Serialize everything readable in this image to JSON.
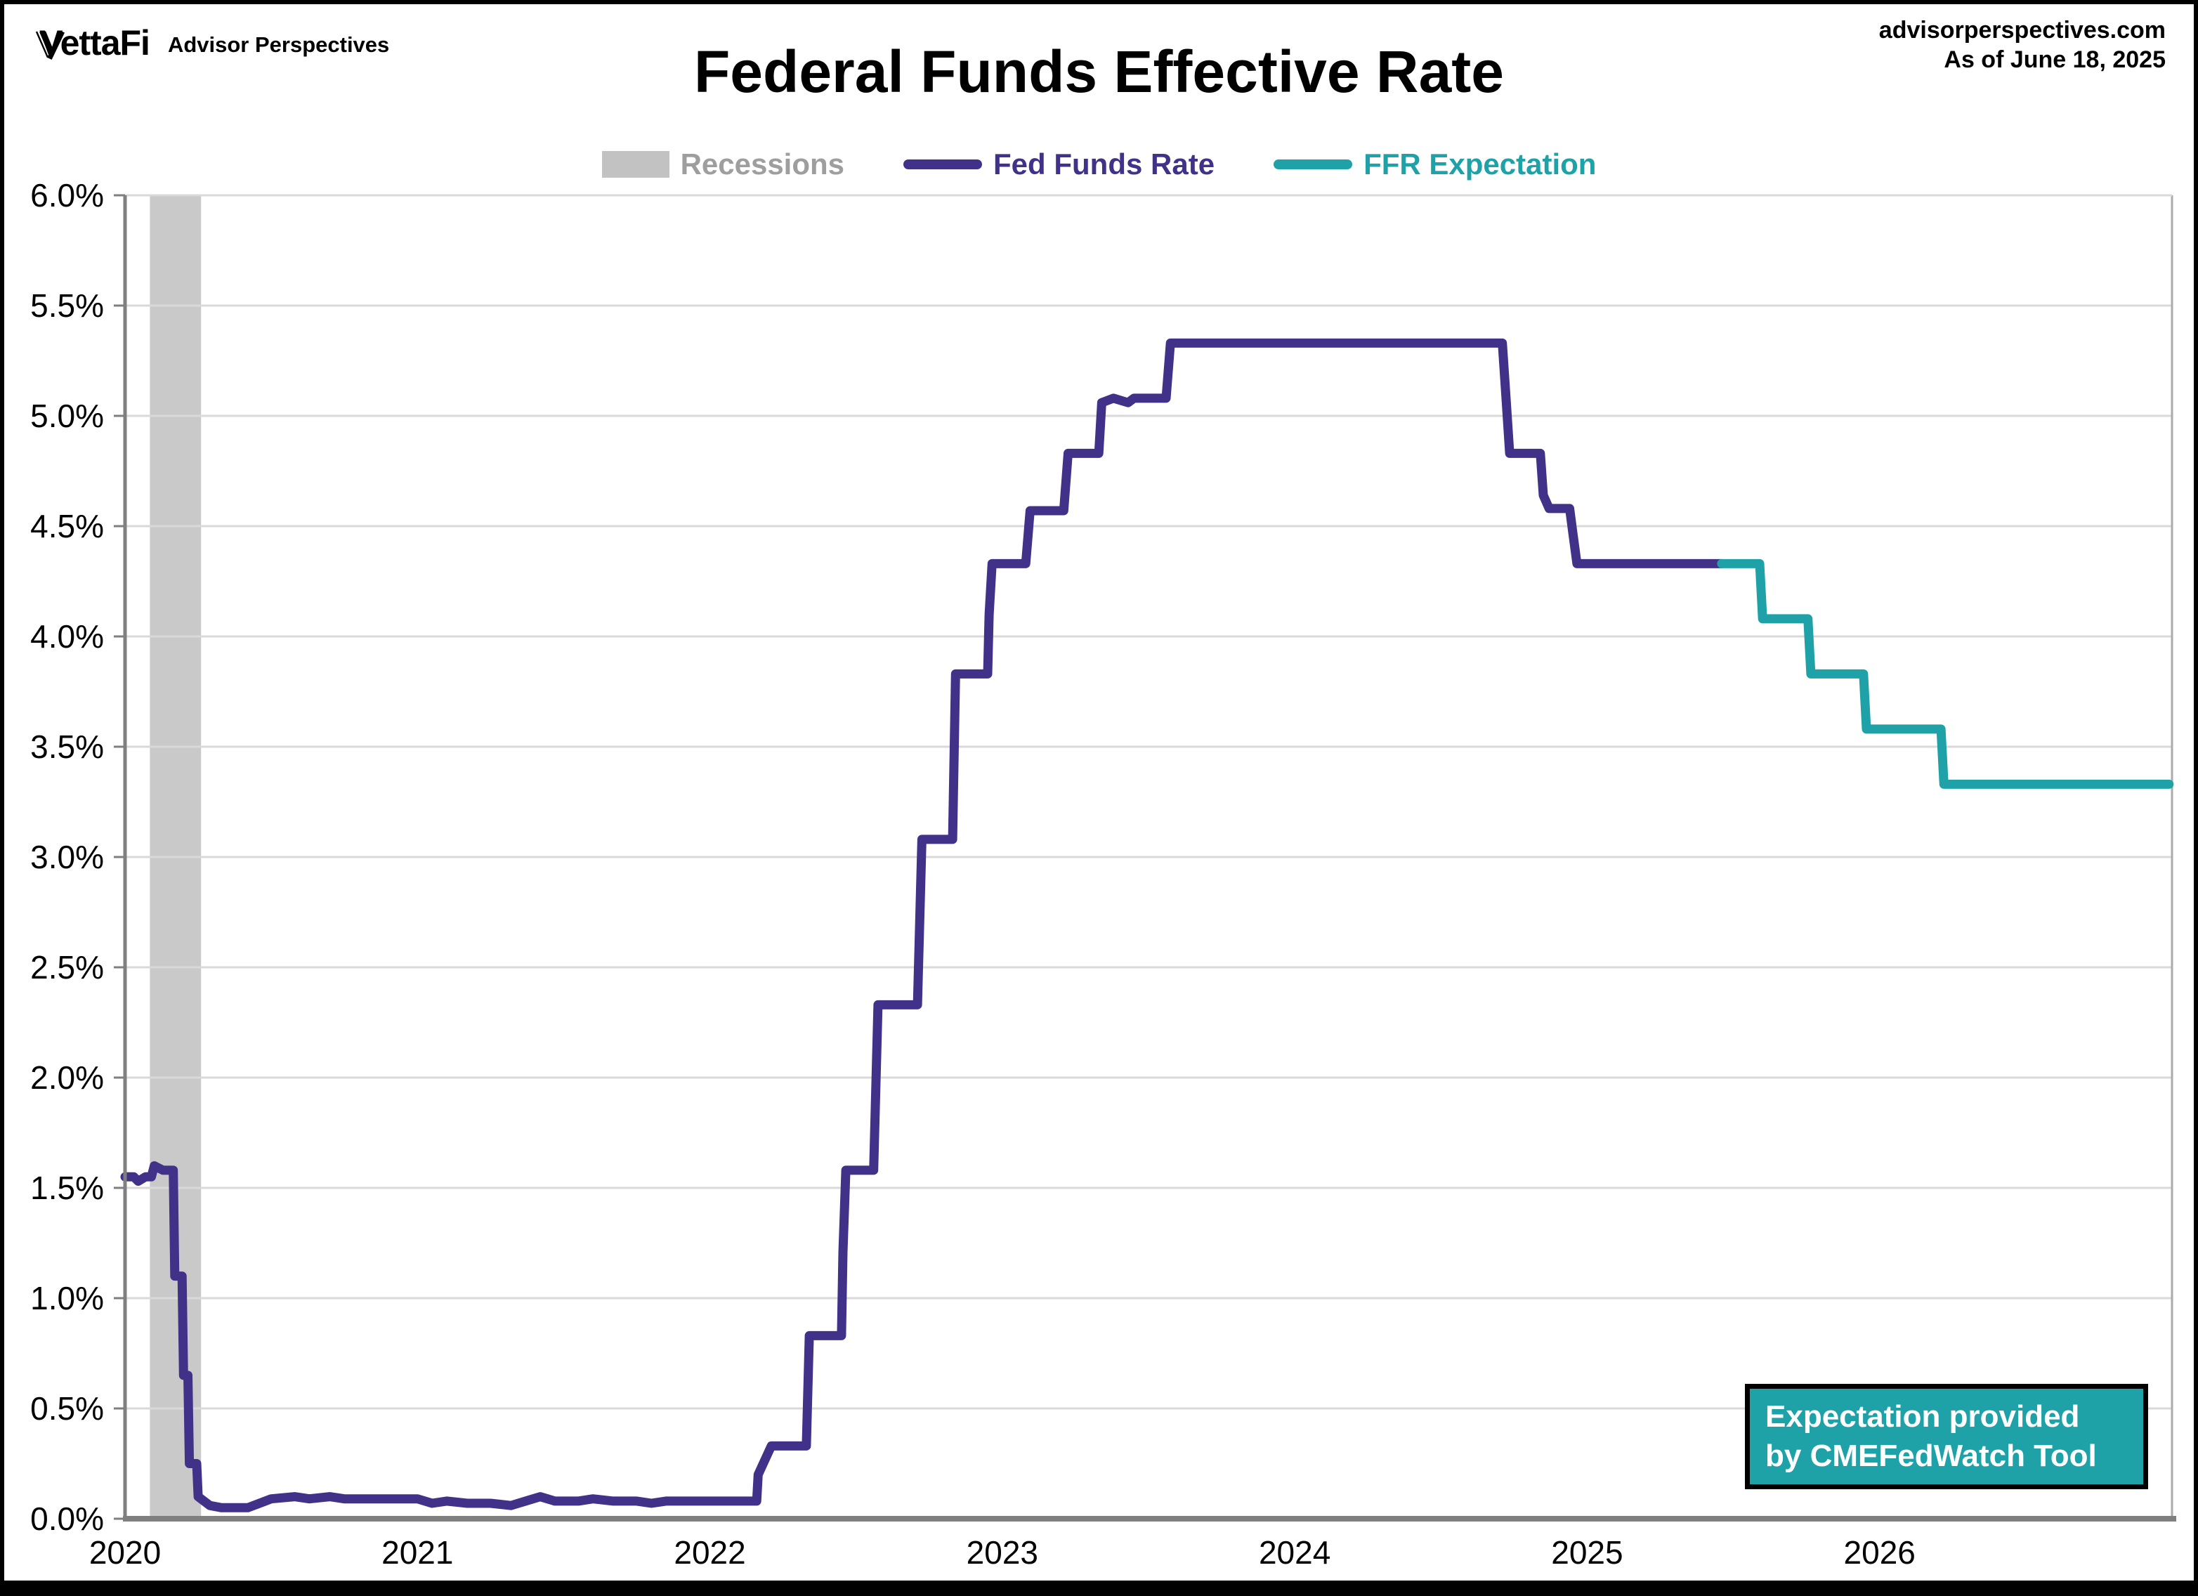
{
  "header": {
    "logo_text": "VettaFi",
    "logo_sub": "Advisor Perspectives",
    "site": "advisorperspectives.com",
    "as_of": "As of June 18, 2025",
    "title": "Federal Funds Effective Rate"
  },
  "legend": {
    "items": [
      {
        "label": "Recessions",
        "color": "#9e9e9e",
        "swatch_color": "#c2c2c2",
        "type": "band"
      },
      {
        "label": "Fed Funds Rate",
        "color": "#413189",
        "swatch_color": "#413189",
        "type": "line"
      },
      {
        "label": "FFR Expectation",
        "color": "#1ea2a8",
        "swatch_color": "#1ea2a8",
        "type": "line"
      }
    ]
  },
  "annotation_box": {
    "line1": "Expectation provided",
    "line2": "by CMEFedWatch Tool",
    "bg": "#1ea2a8",
    "text_color": "#ffffff",
    "border_color": "#000000"
  },
  "chart_data": {
    "type": "line",
    "title": "Federal Funds Effective Rate",
    "xlabel": "",
    "ylabel": "",
    "xlim": [
      2020.0,
      2027.0
    ],
    "ylim": [
      0.0,
      6.0
    ],
    "grid": true,
    "legend_position": "top-center",
    "colors": {
      "fed_funds": "#413189",
      "expectation": "#1ea2a8",
      "recession_band": "#c9c9c9",
      "gridline": "#d9d9d9",
      "axis": "#7f7f7f"
    },
    "yticks": [
      {
        "v": 6.0,
        "label": "6.0%"
      },
      {
        "v": 5.5,
        "label": "5.5%"
      },
      {
        "v": 5.0,
        "label": "5.0%"
      },
      {
        "v": 4.5,
        "label": "4.5%"
      },
      {
        "v": 4.0,
        "label": "4.0%"
      },
      {
        "v": 3.5,
        "label": "3.5%"
      },
      {
        "v": 3.0,
        "label": "3.0%"
      },
      {
        "v": 2.5,
        "label": "2.5%"
      },
      {
        "v": 2.0,
        "label": "2.0%"
      },
      {
        "v": 1.5,
        "label": "1.5%"
      },
      {
        "v": 1.0,
        "label": "1.0%"
      },
      {
        "v": 0.5,
        "label": "0.5%"
      },
      {
        "v": 0.0,
        "label": "0.0%"
      }
    ],
    "xticks": [
      {
        "v": 2020,
        "label": "2020"
      },
      {
        "v": 2021,
        "label": "2021"
      },
      {
        "v": 2022,
        "label": "2022"
      },
      {
        "v": 2023,
        "label": "2023"
      },
      {
        "v": 2024,
        "label": "2024"
      },
      {
        "v": 2025,
        "label": "2025"
      },
      {
        "v": 2026,
        "label": "2026"
      }
    ],
    "recessions": [
      {
        "from": 2020.085,
        "to": 2020.26
      }
    ],
    "series": [
      {
        "name": "Fed Funds Rate",
        "color_key": "fed_funds",
        "points": [
          [
            2020.0,
            1.55
          ],
          [
            2020.03,
            1.55
          ],
          [
            2020.045,
            1.53
          ],
          [
            2020.07,
            1.55
          ],
          [
            2020.09,
            1.55
          ],
          [
            2020.1,
            1.6
          ],
          [
            2020.13,
            1.58
          ],
          [
            2020.165,
            1.58
          ],
          [
            2020.17,
            1.1
          ],
          [
            2020.195,
            1.1
          ],
          [
            2020.2,
            0.65
          ],
          [
            2020.215,
            0.65
          ],
          [
            2020.22,
            0.25
          ],
          [
            2020.245,
            0.25
          ],
          [
            2020.25,
            0.1
          ],
          [
            2020.29,
            0.06
          ],
          [
            2020.33,
            0.05
          ],
          [
            2020.42,
            0.05
          ],
          [
            2020.46,
            0.07
          ],
          [
            2020.5,
            0.09
          ],
          [
            2020.58,
            0.1
          ],
          [
            2020.63,
            0.09
          ],
          [
            2020.7,
            0.1
          ],
          [
            2020.75,
            0.09
          ],
          [
            2020.83,
            0.09
          ],
          [
            2020.92,
            0.09
          ],
          [
            2021.0,
            0.09
          ],
          [
            2021.05,
            0.07
          ],
          [
            2021.1,
            0.08
          ],
          [
            2021.17,
            0.07
          ],
          [
            2021.25,
            0.07
          ],
          [
            2021.32,
            0.06
          ],
          [
            2021.37,
            0.08
          ],
          [
            2021.42,
            0.1
          ],
          [
            2021.47,
            0.08
          ],
          [
            2021.55,
            0.08
          ],
          [
            2021.6,
            0.09
          ],
          [
            2021.67,
            0.08
          ],
          [
            2021.75,
            0.08
          ],
          [
            2021.8,
            0.07
          ],
          [
            2021.85,
            0.08
          ],
          [
            2021.95,
            0.08
          ],
          [
            2022.05,
            0.08
          ],
          [
            2022.16,
            0.08
          ],
          [
            2022.165,
            0.2
          ],
          [
            2022.21,
            0.33
          ],
          [
            2022.33,
            0.33
          ],
          [
            2022.34,
            0.83
          ],
          [
            2022.45,
            0.83
          ],
          [
            2022.455,
            1.21
          ],
          [
            2022.465,
            1.58
          ],
          [
            2022.56,
            1.58
          ],
          [
            2022.575,
            2.33
          ],
          [
            2022.71,
            2.33
          ],
          [
            2022.725,
            3.08
          ],
          [
            2022.83,
            3.08
          ],
          [
            2022.84,
            3.83
          ],
          [
            2022.95,
            3.83
          ],
          [
            2022.955,
            4.1
          ],
          [
            2022.965,
            4.33
          ],
          [
            2023.08,
            4.33
          ],
          [
            2023.095,
            4.57
          ],
          [
            2023.21,
            4.57
          ],
          [
            2023.225,
            4.83
          ],
          [
            2023.33,
            4.83
          ],
          [
            2023.34,
            5.06
          ],
          [
            2023.38,
            5.08
          ],
          [
            2023.43,
            5.06
          ],
          [
            2023.45,
            5.08
          ],
          [
            2023.56,
            5.08
          ],
          [
            2023.575,
            5.33
          ],
          [
            2024.71,
            5.33
          ],
          [
            2024.72,
            5.13
          ],
          [
            2024.735,
            4.83
          ],
          [
            2024.84,
            4.83
          ],
          [
            2024.85,
            4.64
          ],
          [
            2024.87,
            4.58
          ],
          [
            2024.94,
            4.58
          ],
          [
            2024.95,
            4.48
          ],
          [
            2024.965,
            4.33
          ],
          [
            2025.46,
            4.33
          ]
        ]
      },
      {
        "name": "FFR Expectation",
        "color_key": "expectation",
        "points": [
          [
            2025.46,
            4.33
          ],
          [
            2025.59,
            4.33
          ],
          [
            2025.6,
            4.08
          ],
          [
            2025.755,
            4.08
          ],
          [
            2025.765,
            3.83
          ],
          [
            2025.945,
            3.83
          ],
          [
            2025.955,
            3.58
          ],
          [
            2026.21,
            3.58
          ],
          [
            2026.22,
            3.33
          ],
          [
            2026.99,
            3.33
          ]
        ]
      }
    ]
  }
}
